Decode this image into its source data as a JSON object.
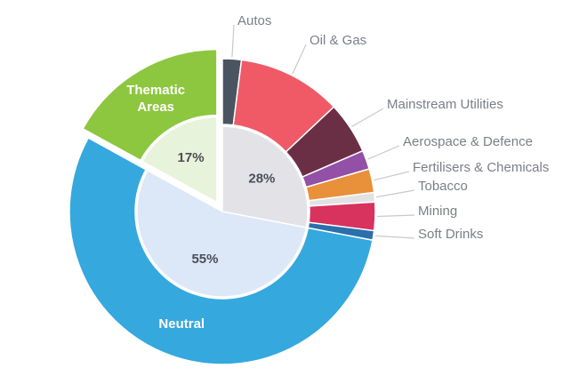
{
  "chart_data": {
    "type": "nested-donut",
    "inner": {
      "values": [
        28,
        55,
        17
      ],
      "value_labels": [
        "28%",
        "55%",
        "17%"
      ],
      "colors": [
        "#e3e3e7",
        "#dce8f7",
        "#e7f3da"
      ]
    },
    "outer": {
      "categories": [
        "Autos",
        "Oil & Gas",
        "Mainstream Utilities",
        "Aerospace & Defence",
        "Fertilisers & Chemicals",
        "Tobacco",
        "Mining",
        "Soft Drinks",
        "Neutral",
        "Thematic Areas"
      ],
      "values": [
        2,
        11,
        5.5,
        2,
        2.5,
        1,
        3,
        1,
        55,
        17
      ],
      "colors": [
        "#4a5561",
        "#ef5a66",
        "#6b2f45",
        "#9250a6",
        "#e8903a",
        "#e2e2e2",
        "#d8325e",
        "#2a6fae",
        "#35a8de",
        "#8dc63f"
      ]
    },
    "exploded": "Thematic Areas"
  }
}
